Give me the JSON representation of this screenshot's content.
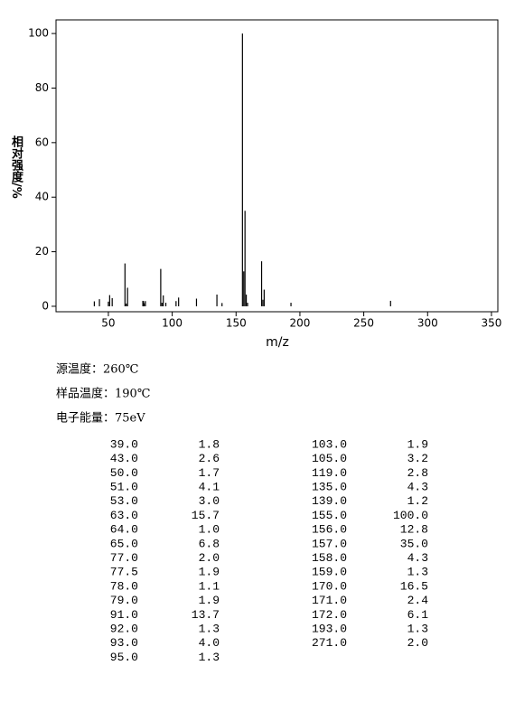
{
  "chart_data": {
    "type": "bar",
    "ylabel": "相对强度/%",
    "xlabel": "m/z",
    "xlim": [
      9,
      355
    ],
    "xticks": [
      50,
      100,
      150,
      200,
      250,
      300,
      350
    ],
    "ylim": [
      -2,
      105
    ],
    "yticks": [
      0,
      20,
      40,
      60,
      80,
      100
    ],
    "color": "#000000",
    "x": [
      39,
      43,
      50,
      51,
      53,
      63,
      64,
      65,
      77,
      77.5,
      78,
      79,
      91,
      92,
      93,
      95,
      103,
      105,
      119,
      135,
      139,
      155,
      156,
      157,
      158,
      159,
      170,
      171,
      172,
      193,
      271
    ],
    "x_labels": [
      "39.0",
      "43.0",
      "50.0",
      "51.0",
      "53.0",
      "63.0",
      "64.0",
      "65.0",
      "77.0",
      "77.5",
      "78.0",
      "79.0",
      "91.0",
      "92.0",
      "93.0",
      "95.0",
      "103.0",
      "105.0",
      "119.0",
      "135.0",
      "139.0",
      "155.0",
      "156.0",
      "157.0",
      "158.0",
      "159.0",
      "170.0",
      "171.0",
      "172.0",
      "193.0",
      "271.0"
    ],
    "values": [
      1.8,
      2.6,
      1.7,
      4.1,
      3.0,
      15.7,
      1.0,
      6.8,
      2.0,
      1.9,
      1.1,
      1.9,
      13.7,
      1.3,
      4.0,
      1.3,
      1.9,
      3.2,
      2.8,
      4.3,
      1.2,
      100.0,
      12.8,
      35.0,
      4.3,
      1.3,
      16.5,
      2.4,
      6.1,
      1.3,
      2.0
    ],
    "value_labels": [
      "1.8",
      "2.6",
      "1.7",
      "4.1",
      "3.0",
      "15.7",
      "1.0",
      "6.8",
      "2.0",
      "1.9",
      "1.1",
      "1.9",
      "13.7",
      "1.3",
      "4.0",
      "1.3",
      "1.9",
      "3.2",
      "2.8",
      "4.3",
      "1.2",
      "100.0",
      "12.8",
      "35.0",
      "4.3",
      "1.3",
      "16.5",
      "2.4",
      "6.1",
      "1.3",
      "2.0"
    ],
    "conditions": [
      "源温度：260℃",
      "样品温度：190℃",
      "电子能量：75eV"
    ]
  }
}
